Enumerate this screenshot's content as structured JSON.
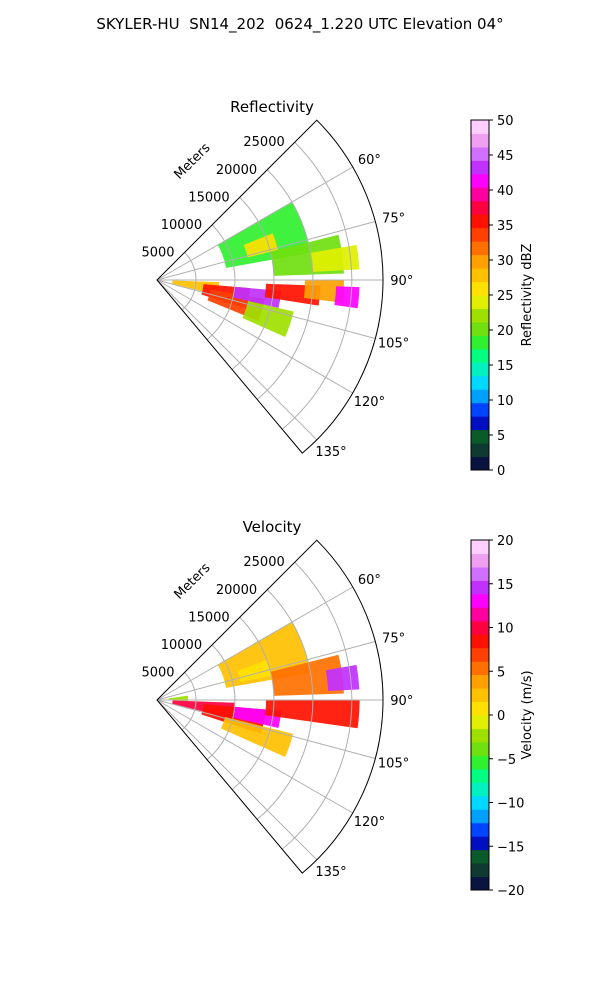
{
  "figure": {
    "title": "SKYLER-HU  SN14_202  0624_1.220 UTC Elevation 04°"
  },
  "chart_data": [
    {
      "type": "heatmap",
      "projection": "polar-sector",
      "title": "Reflectivity",
      "r_label": "Meters",
      "r_ticks": [
        "5000",
        "10000",
        "15000",
        "20000",
        "25000"
      ],
      "r_tick_values": [
        5000,
        10000,
        15000,
        20000,
        25000
      ],
      "r_max": 29000,
      "theta_ticks": [
        "60°",
        "75°",
        "90°",
        "105°",
        "120°",
        "135°"
      ],
      "theta_tick_values": [
        60,
        75,
        90,
        105,
        120,
        135
      ],
      "theta_range": [
        45,
        140
      ],
      "grid": true,
      "colorbar": {
        "label": "Reflectivity dBZ",
        "ticks": [
          "0",
          "5",
          "10",
          "15",
          "20",
          "25",
          "30",
          "35",
          "40",
          "45",
          "50"
        ],
        "range": [
          0,
          50
        ],
        "colors": [
          "#0a1440",
          "#0f3a32",
          "#0a5a2a",
          "#0010c0",
          "#0044ff",
          "#00a0ff",
          "#00d8ff",
          "#00f0c0",
          "#00ff80",
          "#30f030",
          "#70e010",
          "#a0e000",
          "#e0f000",
          "#ffe000",
          "#ffc000",
          "#ffa000",
          "#ff7000",
          "#ff4000",
          "#ff1000",
          "#ff0040",
          "#ff00a0",
          "#ff00ff",
          "#c030ff",
          "#d070ff",
          "#f0a0f0",
          "#ffd0ff"
        ]
      },
      "echoes": [
        {
          "theta": [
            60,
            80
          ],
          "r": [
            9000,
            20000
          ],
          "value": 18
        },
        {
          "theta": [
            68,
            76
          ],
          "r": [
            12000,
            16000
          ],
          "value": 26
        },
        {
          "theta": [
            76,
            88
          ],
          "r": [
            15000,
            24000
          ],
          "value": 20
        },
        {
          "theta": [
            80,
            87
          ],
          "r": [
            20000,
            26000
          ],
          "value": 24
        },
        {
          "theta": [
            92,
            104
          ],
          "r": [
            2000,
            8000
          ],
          "value": 28
        },
        {
          "theta": [
            95,
            108
          ],
          "r": [
            6000,
            12000
          ],
          "value": 36
        },
        {
          "theta": [
            100,
            112
          ],
          "r": [
            7000,
            14000
          ],
          "value": 33
        },
        {
          "theta": [
            95,
            103
          ],
          "r": [
            10000,
            16000
          ],
          "value": 43
        },
        {
          "theta": [
            92,
            99
          ],
          "r": [
            14000,
            21000
          ],
          "value": 35
        },
        {
          "theta": [
            90,
            97
          ],
          "r": [
            19000,
            24000
          ],
          "value": 30
        },
        {
          "theta": [
            92,
            98
          ],
          "r": [
            23000,
            26000
          ],
          "value": 42
        },
        {
          "theta": [
            103,
            114
          ],
          "r": [
            12000,
            18000
          ],
          "value": 22
        }
      ]
    },
    {
      "type": "heatmap",
      "projection": "polar-sector",
      "title": "Velocity",
      "r_label": "Meters",
      "r_ticks": [
        "5000",
        "10000",
        "15000",
        "20000",
        "25000"
      ],
      "r_tick_values": [
        5000,
        10000,
        15000,
        20000,
        25000
      ],
      "r_max": 29000,
      "theta_ticks": [
        "60°",
        "75°",
        "90°",
        "105°",
        "120°",
        "135°"
      ],
      "theta_tick_values": [
        60,
        75,
        90,
        105,
        120,
        135
      ],
      "theta_range": [
        45,
        140
      ],
      "grid": true,
      "colorbar": {
        "label": "Velocity (m/s)",
        "ticks": [
          "−20",
          "−15",
          "−10",
          "−5",
          "0",
          "5",
          "10",
          "15",
          "20"
        ],
        "range": [
          -20,
          20
        ],
        "colors": [
          "#0a1440",
          "#0f3a32",
          "#0a5a2a",
          "#0010c0",
          "#0044ff",
          "#00a0ff",
          "#00d8ff",
          "#00f0c0",
          "#00ff80",
          "#30f030",
          "#70e010",
          "#a0e000",
          "#e0f000",
          "#ffe000",
          "#ffc000",
          "#ffa000",
          "#ff7000",
          "#ff4000",
          "#ff1000",
          "#ff0040",
          "#ff00a0",
          "#ff00ff",
          "#c030ff",
          "#d070ff",
          "#f0a0f0",
          "#ffd0ff"
        ]
      },
      "echoes": [
        {
          "theta": [
            60,
            80
          ],
          "r": [
            9000,
            20000
          ],
          "value": 2
        },
        {
          "theta": [
            70,
            78
          ],
          "r": [
            11000,
            15000
          ],
          "value": 0
        },
        {
          "theta": [
            76,
            88
          ],
          "r": [
            15000,
            24000
          ],
          "value": 6
        },
        {
          "theta": [
            80,
            87
          ],
          "r": [
            22000,
            26000
          ],
          "value": 14
        },
        {
          "theta": [
            82,
            92
          ],
          "r": [
            1500,
            4000
          ],
          "value": -2
        },
        {
          "theta": [
            92,
            104
          ],
          "r": [
            2000,
            10000
          ],
          "value": 10
        },
        {
          "theta": [
            95,
            108
          ],
          "r": [
            6000,
            14000
          ],
          "value": 9
        },
        {
          "theta": [
            95,
            103
          ],
          "r": [
            10000,
            16000
          ],
          "value": 13
        },
        {
          "theta": [
            90,
            98
          ],
          "r": [
            14000,
            26000
          ],
          "value": 9
        },
        {
          "theta": [
            104,
            114
          ],
          "r": [
            9000,
            18000
          ],
          "value": 2
        }
      ]
    }
  ]
}
